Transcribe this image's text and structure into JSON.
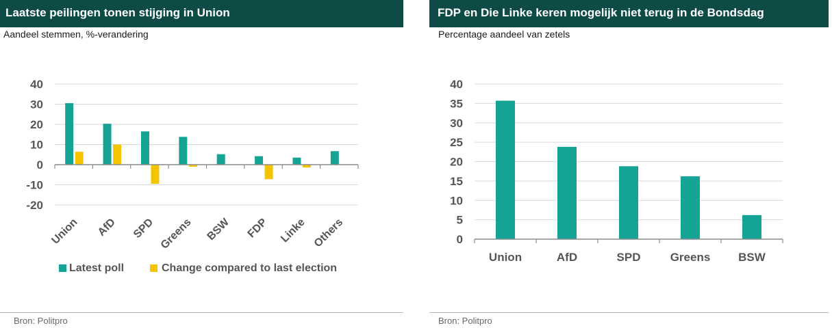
{
  "colors": {
    "header_background": "#0e4b47",
    "latest_poll": "#14a394",
    "change": "#f5c400",
    "gridline": "#d9d9d9",
    "axis": "#8a8a8a"
  },
  "chart_data": [
    {
      "type": "bar",
      "title": "Laatste peilingen tonen stijging in Union",
      "subtitle": "Aandeel stemmen, %-verandering",
      "categories": [
        "Union",
        "AfD",
        "SPD",
        "Greens",
        "BSW",
        "FDP",
        "Linke",
        "Others"
      ],
      "series": [
        {
          "name": "Latest poll",
          "color": "#14a394",
          "values": [
            30.5,
            20.3,
            16.5,
            13.8,
            5.2,
            4.2,
            3.5,
            6.7
          ]
        },
        {
          "name": "Change compared to last election",
          "color": "#f5c400",
          "values": [
            6.4,
            10.0,
            -9.5,
            -1.0,
            null,
            -7.2,
            -1.4,
            null
          ]
        }
      ],
      "ylim": [
        -20,
        40
      ],
      "yticks": [
        40,
        30,
        20,
        10,
        0,
        -10,
        -20
      ],
      "grid": true,
      "legend": "bottom",
      "source": "Bron: Politpro"
    },
    {
      "type": "bar",
      "title": "FDP en Die Linke keren mogelijk niet terug in de Bondsdag",
      "subtitle": "Percentage aandeel van zetels",
      "categories": [
        "Union",
        "AfD",
        "SPD",
        "Greens",
        "BSW"
      ],
      "values": [
        35.7,
        23.8,
        18.8,
        16.2,
        6.2
      ],
      "color": "#14a394",
      "ylim": [
        0,
        40
      ],
      "yticks": [
        40,
        35,
        30,
        25,
        20,
        15,
        10,
        5,
        0
      ],
      "grid": true,
      "source": "Bron: Politpro"
    }
  ]
}
